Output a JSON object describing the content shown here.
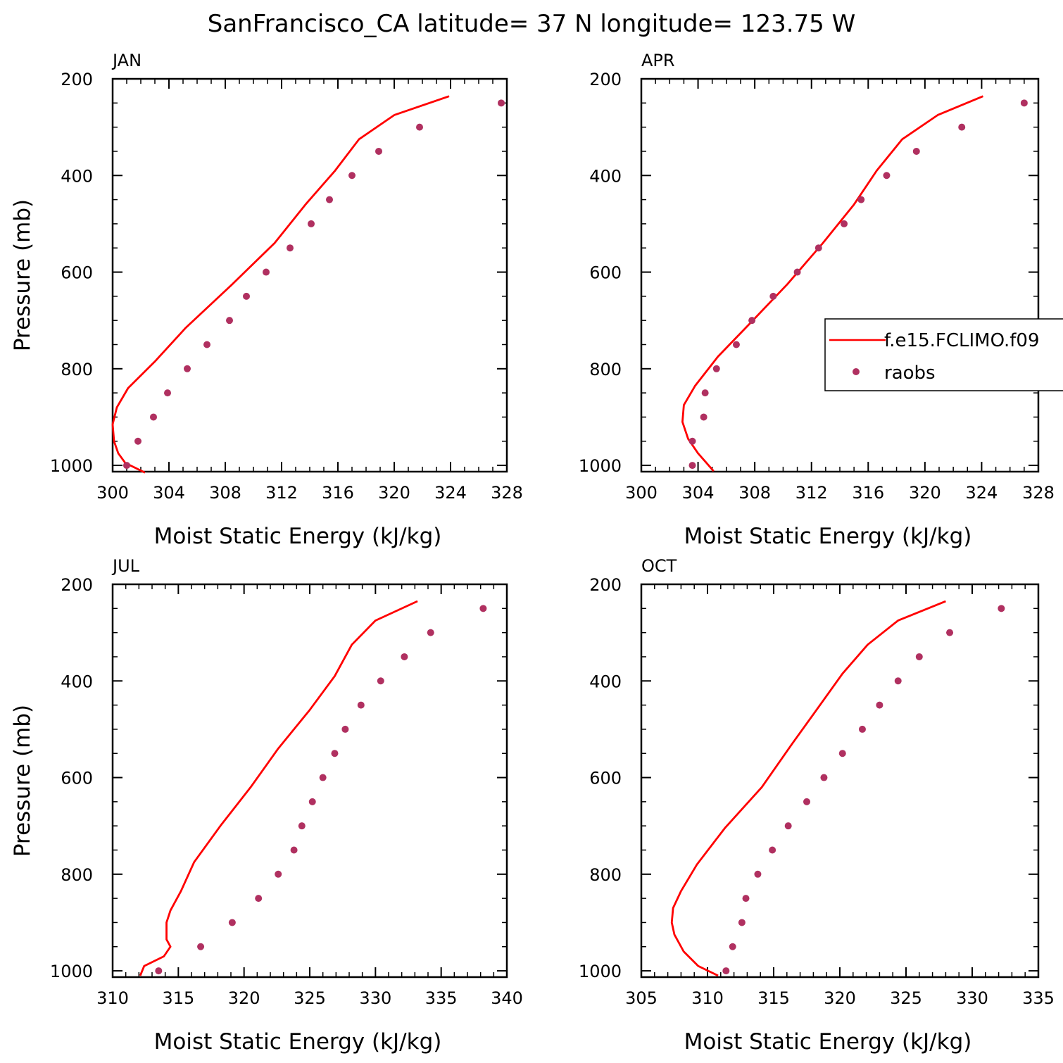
{
  "title": "SanFrancisco_CA  latitude= 37 N longitude= 123.75 W",
  "colors": {
    "model_line": "#ff0000",
    "obs_marker": "#b03060",
    "axis": "#000000"
  },
  "legend": {
    "placement": "right-of-APR-panel",
    "model_label": "f.e15.FCLIMO.f09",
    "obs_label": "raobs"
  },
  "chart_data": [
    {
      "type": "line",
      "panel": "JAN",
      "xlabel": "Moist Static Energy (kJ/kg)",
      "ylabel": "Pressure (mb)",
      "xlim": [
        300,
        328
      ],
      "ylim": [
        1013,
        200
      ],
      "xticks": [
        300,
        304,
        308,
        312,
        316,
        320,
        324,
        328
      ],
      "yticks": [
        200,
        400,
        600,
        800,
        1000
      ],
      "series": [
        {
          "name": "f.e15.FCLIMO.f09",
          "style": "line",
          "x": [
            323.9,
            320.0,
            317.5,
            315.8,
            313.7,
            311.5,
            308.5,
            305.2,
            303.0,
            301.1,
            300.3,
            300.0,
            300.1,
            300.4,
            300.9,
            302.3
          ],
          "y": [
            236,
            275,
            325,
            390,
            460,
            540,
            625,
            715,
            785,
            840,
            880,
            915,
            950,
            975,
            995,
            1015
          ]
        },
        {
          "name": "raobs",
          "style": "markers",
          "x": [
            327.6,
            321.8,
            318.9,
            317.0,
            315.4,
            314.1,
            312.6,
            310.9,
            309.5,
            308.3,
            306.7,
            305.3,
            303.9,
            302.9,
            301.8,
            301.0
          ],
          "y": [
            250,
            300,
            350,
            400,
            450,
            500,
            550,
            600,
            650,
            700,
            750,
            800,
            850,
            900,
            950,
            1000
          ]
        }
      ]
    },
    {
      "type": "line",
      "panel": "APR",
      "xlabel": "Moist Static Energy (kJ/kg)",
      "ylabel": "",
      "xlim": [
        300,
        328
      ],
      "ylim": [
        1013,
        200
      ],
      "xticks": [
        300,
        304,
        308,
        312,
        316,
        320,
        324,
        328
      ],
      "yticks": [
        200,
        400,
        600,
        800,
        1000
      ],
      "series": [
        {
          "name": "f.e15.FCLIMO.f09",
          "style": "line",
          "x": [
            324.1,
            320.9,
            318.4,
            316.6,
            315.0,
            312.8,
            310.3,
            307.7,
            305.4,
            303.8,
            303.0,
            302.9,
            303.3,
            304.0,
            304.6,
            305.1
          ],
          "y": [
            236,
            275,
            325,
            390,
            460,
            540,
            625,
            705,
            775,
            835,
            875,
            910,
            945,
            975,
            995,
            1012
          ]
        },
        {
          "name": "raobs",
          "style": "markers",
          "x": [
            327.0,
            322.6,
            319.4,
            317.3,
            315.5,
            314.3,
            312.5,
            311.0,
            309.3,
            307.8,
            306.7,
            305.3,
            304.5,
            304.4,
            303.6,
            303.6
          ],
          "y": [
            250,
            300,
            350,
            400,
            450,
            500,
            550,
            600,
            650,
            700,
            750,
            800,
            850,
            900,
            950,
            1000
          ]
        }
      ]
    },
    {
      "type": "line",
      "panel": "JUL",
      "xlabel": "Moist Static Energy (kJ/kg)",
      "ylabel": "Pressure (mb)",
      "xlim": [
        310,
        340
      ],
      "ylim": [
        1013,
        200
      ],
      "xticks": [
        310,
        315,
        320,
        325,
        330,
        335,
        340
      ],
      "yticks": [
        200,
        400,
        600,
        800,
        1000
      ],
      "series": [
        {
          "name": "f.e15.FCLIMO.f09",
          "style": "line",
          "x": [
            333.2,
            330.0,
            328.2,
            326.9,
            325.0,
            322.6,
            320.5,
            318.2,
            316.2,
            315.2,
            314.4,
            314.1,
            314.1,
            314.4,
            313.9,
            312.4,
            312.1
          ],
          "y": [
            235,
            275,
            325,
            390,
            460,
            540,
            620,
            700,
            775,
            835,
            875,
            900,
            935,
            950,
            970,
            990,
            1010
          ]
        },
        {
          "name": "raobs",
          "style": "markers",
          "x": [
            338.2,
            334.2,
            332.2,
            330.4,
            328.9,
            327.7,
            326.9,
            326.0,
            325.2,
            324.4,
            323.8,
            322.6,
            321.1,
            319.1,
            316.7,
            313.5
          ],
          "y": [
            250,
            300,
            350,
            400,
            450,
            500,
            550,
            600,
            650,
            700,
            750,
            800,
            850,
            900,
            950,
            1000
          ]
        }
      ]
    },
    {
      "type": "line",
      "panel": "OCT",
      "xlabel": "Moist Static Energy (kJ/kg)",
      "ylabel": "",
      "xlim": [
        305,
        335
      ],
      "ylim": [
        1013,
        200
      ],
      "xticks": [
        305,
        310,
        315,
        320,
        325,
        330,
        335
      ],
      "yticks": [
        200,
        400,
        600,
        800,
        1000
      ],
      "series": [
        {
          "name": "f.e15.FCLIMO.f09",
          "style": "line",
          "x": [
            328.0,
            324.4,
            322.1,
            320.2,
            318.5,
            316.4,
            314.1,
            311.3,
            309.2,
            308.0,
            307.4,
            307.3,
            307.5,
            308.2,
            309.3,
            310.8
          ],
          "y": [
            235,
            275,
            325,
            385,
            450,
            530,
            620,
            705,
            780,
            835,
            870,
            900,
            925,
            960,
            990,
            1010
          ]
        },
        {
          "name": "raobs",
          "style": "markers",
          "x": [
            332.2,
            328.3,
            326.0,
            324.4,
            323.0,
            321.7,
            320.2,
            318.8,
            317.5,
            316.1,
            314.9,
            313.8,
            312.9,
            312.6,
            311.9,
            311.4
          ],
          "y": [
            250,
            300,
            350,
            400,
            450,
            500,
            550,
            600,
            650,
            700,
            750,
            800,
            850,
            900,
            950,
            1000
          ]
        }
      ]
    }
  ]
}
